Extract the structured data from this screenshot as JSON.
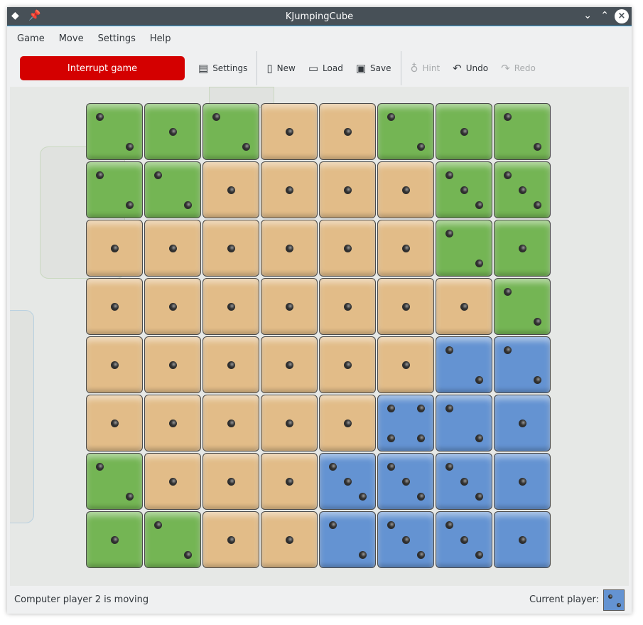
{
  "window": {
    "title": "KJumpingCube"
  },
  "menu": [
    "Game",
    "Move",
    "Settings",
    "Help"
  ],
  "toolbar": {
    "interrupt": "Interrupt game",
    "settings": "Settings",
    "new": "New",
    "load": "Load",
    "save": "Save",
    "hint": "Hint",
    "undo": "Undo",
    "redo": "Redo"
  },
  "colors": {
    "G": "#74b554",
    "T": "#e2bc88",
    "B": "#6493d2"
  },
  "board": [
    [
      "G2",
      "G1",
      "G2",
      "T1",
      "T1",
      "G2",
      "G1",
      "G2"
    ],
    [
      "G2",
      "G2",
      "T1",
      "T1",
      "T1",
      "T1",
      "G3",
      "G3"
    ],
    [
      "T1",
      "T1",
      "T1",
      "T1",
      "T1",
      "T1",
      "G2",
      "G1"
    ],
    [
      "T1",
      "T1",
      "T1",
      "T1",
      "T1",
      "T1",
      "T1",
      "G2"
    ],
    [
      "T1",
      "T1",
      "T1",
      "T1",
      "T1",
      "T1",
      "B2",
      "B2"
    ],
    [
      "T1",
      "T1",
      "T1",
      "T1",
      "T1",
      "B4",
      "B2",
      "B1"
    ],
    [
      "G2",
      "T1",
      "T1",
      "T1",
      "B3",
      "B3",
      "B3",
      "B1"
    ],
    [
      "G1",
      "G2",
      "T1",
      "T1",
      "B2",
      "B3",
      "B3",
      "B1"
    ]
  ],
  "status": {
    "message": "Computer player 2 is moving",
    "current_label": "Current player:",
    "current_player": "B2"
  }
}
